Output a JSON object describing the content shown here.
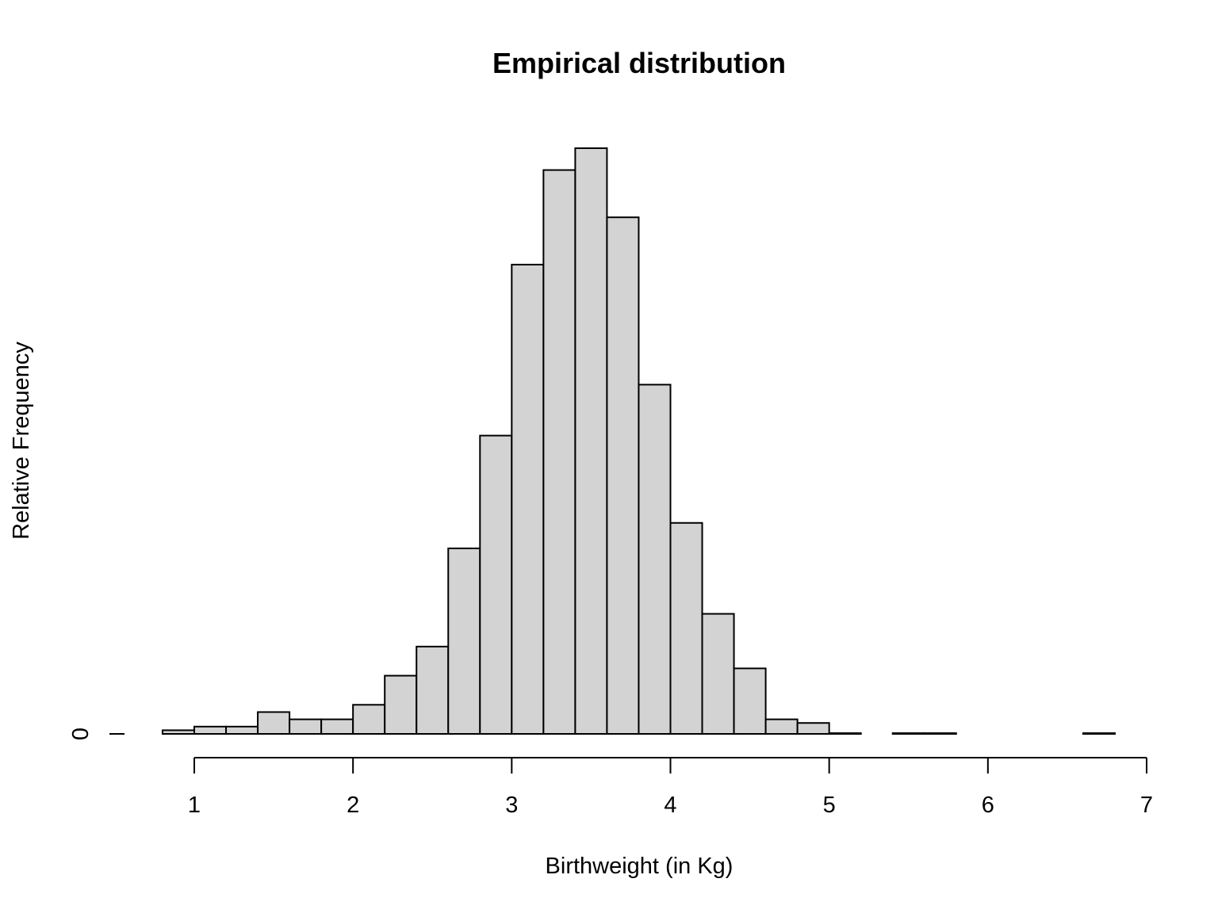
{
  "chart_data": {
    "type": "bar",
    "subtype": "histogram",
    "title": "Empirical distribution",
    "xlabel": "Birthweight (in Kg)",
    "ylabel": "Relative Frequency",
    "bin_width": 0.2,
    "bin_start": 0.8,
    "bins": [
      0.8,
      1.0,
      1.2,
      1.4,
      1.6,
      1.8,
      2.0,
      2.2,
      2.4,
      2.6,
      2.8,
      3.0,
      3.2,
      3.4,
      3.6,
      3.8,
      4.0,
      4.2,
      4.4,
      4.6,
      4.8,
      5.0,
      5.2,
      5.4,
      5.6,
      5.8,
      6.0,
      6.2,
      6.4,
      6.6
    ],
    "values": [
      0.001,
      0.002,
      0.002,
      0.006,
      0.004,
      0.004,
      0.008,
      0.016,
      0.024,
      0.051,
      0.082,
      0.129,
      0.155,
      0.161,
      0.142,
      0.096,
      0.058,
      0.033,
      0.018,
      0.004,
      0.003,
      0.0002,
      0,
      0.0002,
      0.0002,
      0,
      0,
      0,
      0,
      0.0002
    ],
    "xlim": [
      1,
      7
    ],
    "x_ticks": [
      "1",
      "2",
      "3",
      "4",
      "5",
      "6",
      "7"
    ],
    "y_ticks": [
      "0"
    ],
    "grid": false,
    "colors": {
      "bar_fill": "#d3d3d3",
      "bar_stroke": "#000000"
    }
  }
}
